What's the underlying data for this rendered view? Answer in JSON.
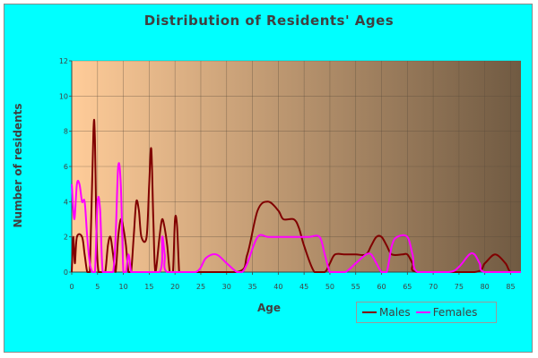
{
  "chart_data": {
    "type": "line",
    "title": "Distribution of Residents' Ages",
    "xlabel": "Age",
    "ylabel": "Number of residents",
    "xlim": [
      0,
      87
    ],
    "ylim": [
      0,
      12
    ],
    "x_ticks": [
      0,
      5,
      10,
      15,
      20,
      25,
      30,
      35,
      40,
      45,
      50,
      55,
      60,
      65,
      70,
      75,
      80,
      85
    ],
    "y_ticks": [
      0,
      2,
      4,
      6,
      8,
      10,
      12
    ],
    "grid": true,
    "legend_position": "bottom-right",
    "background_gradient": [
      "#ffcc99",
      "#705a42"
    ],
    "frame_color": "#00ffff",
    "series": [
      {
        "name": "Males",
        "color": "#800000",
        "points": [
          [
            0,
            0
          ],
          [
            0.3,
            2
          ],
          [
            0.6,
            0.5
          ],
          [
            1,
            2
          ],
          [
            2,
            2
          ],
          [
            2.5,
            1
          ],
          [
            3,
            0
          ],
          [
            3.5,
            0
          ],
          [
            4.2,
            8
          ],
          [
            4.5,
            7.5
          ],
          [
            4.8,
            2
          ],
          [
            5.2,
            0
          ],
          [
            6,
            0
          ],
          [
            6.5,
            0
          ],
          [
            7,
            1.5
          ],
          [
            7.5,
            2
          ],
          [
            8,
            1
          ],
          [
            8.5,
            0
          ],
          [
            9,
            2
          ],
          [
            9.5,
            3
          ],
          [
            10,
            2.5
          ],
          [
            10.5,
            1.5
          ],
          [
            11,
            0
          ],
          [
            11.5,
            0
          ],
          [
            12,
            2
          ],
          [
            12.5,
            4
          ],
          [
            13,
            3.5
          ],
          [
            13.5,
            2
          ],
          [
            14.5,
            2
          ],
          [
            15,
            5
          ],
          [
            15.4,
            7
          ],
          [
            15.8,
            3
          ],
          [
            16.2,
            0
          ],
          [
            17,
            2
          ],
          [
            17.5,
            3
          ],
          [
            18,
            2.5
          ],
          [
            18.5,
            1.5
          ],
          [
            19,
            0
          ],
          [
            19.6,
            0
          ],
          [
            20,
            3
          ],
          [
            20.4,
            2.6
          ],
          [
            20.8,
            0
          ],
          [
            21,
            0
          ],
          [
            32,
            0
          ],
          [
            34,
            1
          ],
          [
            36,
            3.5
          ],
          [
            38,
            4
          ],
          [
            40,
            3.5
          ],
          [
            41,
            3
          ],
          [
            43,
            3
          ],
          [
            44,
            2.5
          ],
          [
            45,
            1.5
          ],
          [
            47,
            0
          ],
          [
            49,
            0
          ],
          [
            50,
            0.5
          ],
          [
            51,
            1
          ],
          [
            53,
            1
          ],
          [
            55,
            1
          ],
          [
            57,
            1
          ],
          [
            58,
            1.5
          ],
          [
            59,
            2
          ],
          [
            60,
            2
          ],
          [
            61,
            1.5
          ],
          [
            62,
            1
          ],
          [
            64,
            1
          ],
          [
            65,
            1
          ],
          [
            66,
            0.5
          ],
          [
            67,
            0
          ],
          [
            78,
            0
          ],
          [
            80,
            0.5
          ],
          [
            82,
            1
          ],
          [
            84,
            0.5
          ],
          [
            85,
            0
          ],
          [
            87,
            0
          ]
        ]
      },
      {
        "name": "Females",
        "color": "#ff00ff",
        "points": [
          [
            0,
            5
          ],
          [
            0.5,
            3
          ],
          [
            1,
            5
          ],
          [
            1.5,
            5
          ],
          [
            2,
            4
          ],
          [
            2.5,
            4
          ],
          [
            3,
            2
          ],
          [
            3.5,
            0.5
          ],
          [
            4,
            0
          ],
          [
            4.5,
            0
          ],
          [
            5,
            4
          ],
          [
            5.5,
            3.5
          ],
          [
            6,
            0
          ],
          [
            7,
            0
          ],
          [
            8,
            0
          ],
          [
            8.5,
            2
          ],
          [
            9,
            6
          ],
          [
            9.5,
            5
          ],
          [
            10,
            0
          ],
          [
            10.5,
            0
          ],
          [
            11,
            1
          ],
          [
            11.5,
            0
          ],
          [
            12,
            0
          ],
          [
            17,
            0
          ],
          [
            17.5,
            2
          ],
          [
            18,
            1
          ],
          [
            18.5,
            0
          ],
          [
            24,
            0
          ],
          [
            26,
            0.8
          ],
          [
            28,
            1
          ],
          [
            30,
            0.5
          ],
          [
            32,
            0
          ],
          [
            33,
            0
          ],
          [
            34,
            0.5
          ],
          [
            36,
            2
          ],
          [
            38,
            2
          ],
          [
            40,
            2
          ],
          [
            42,
            2
          ],
          [
            44,
            2
          ],
          [
            46,
            2
          ],
          [
            48,
            2
          ],
          [
            49,
            1
          ],
          [
            50,
            0
          ],
          [
            51,
            0
          ],
          [
            53,
            0
          ],
          [
            55,
            0.5
          ],
          [
            57,
            1
          ],
          [
            58,
            1
          ],
          [
            59,
            0.5
          ],
          [
            60,
            0
          ],
          [
            61,
            0
          ],
          [
            62,
            1.5
          ],
          [
            63,
            2
          ],
          [
            65,
            2
          ],
          [
            66,
            1
          ],
          [
            67,
            0
          ],
          [
            73,
            0
          ],
          [
            75,
            0.3
          ],
          [
            77,
            1
          ],
          [
            78,
            1
          ],
          [
            79,
            0.5
          ],
          [
            80,
            0
          ],
          [
            87,
            0
          ]
        ]
      }
    ]
  }
}
